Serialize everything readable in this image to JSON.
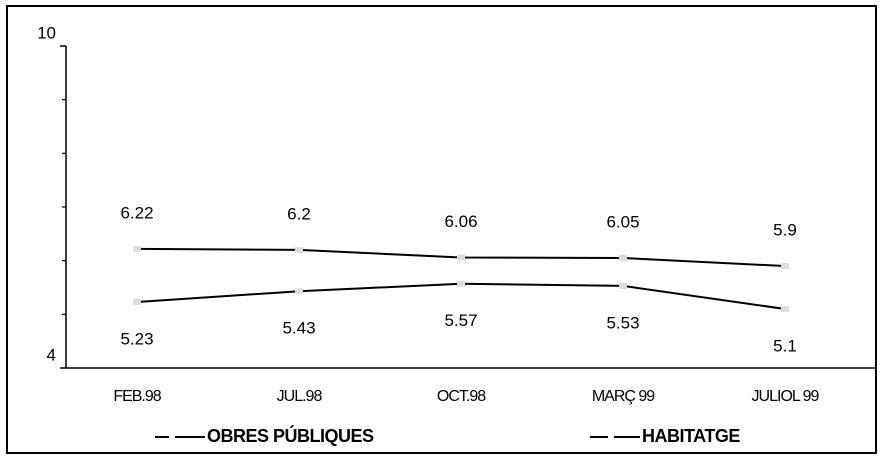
{
  "chart_data": {
    "type": "line",
    "categories": [
      "FEB.98",
      "JUL.98",
      "OCT.98",
      "MARÇ 99",
      "JULIOL 99"
    ],
    "series": [
      {
        "name": "OBRES PÚBLIQUES",
        "color": "#000000",
        "values": [
          6.22,
          6.2,
          6.06,
          6.05,
          5.9
        ]
      },
      {
        "name": "HABITATGE",
        "color": "#000000",
        "values": [
          5.23,
          5.43,
          5.57,
          5.53,
          5.1
        ]
      }
    ],
    "ylim": [
      4,
      10
    ],
    "yticks": [
      4,
      10
    ],
    "yminorticks": [
      5,
      6,
      7,
      8,
      9
    ],
    "grid": false
  }
}
